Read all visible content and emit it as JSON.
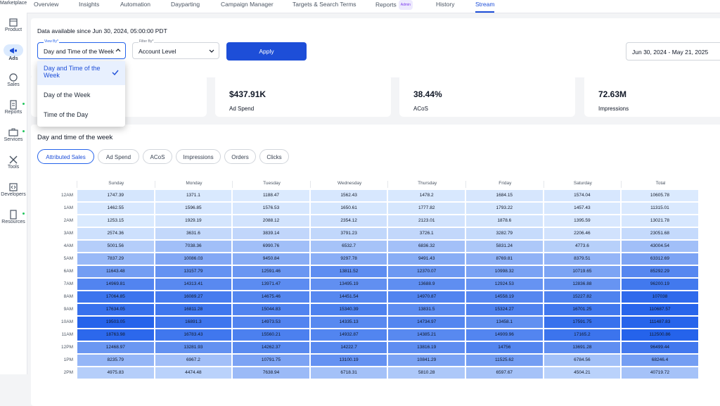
{
  "sidebar": {
    "items": [
      {
        "label": "Marketplace",
        "icon": "marketplace-icon"
      },
      {
        "label": "Product",
        "icon": "product-icon"
      },
      {
        "label": "Ads",
        "icon": "megaphone-icon"
      },
      {
        "label": "Sales",
        "icon": "sales-icon"
      },
      {
        "label": "Reports",
        "icon": "reports-icon"
      },
      {
        "label": "Services",
        "icon": "services-icon"
      },
      {
        "label": "Tools",
        "icon": "tools-icon"
      },
      {
        "label": "Developers",
        "icon": "code-icon"
      },
      {
        "label": "Resources",
        "icon": "book-icon"
      }
    ]
  },
  "nav": {
    "tabs": [
      "Overview",
      "Insights",
      "Automation",
      "Dayparting",
      "Campaign Manager",
      "Targets & Search Terms",
      "Reports",
      "History",
      "Stream"
    ],
    "reports_badge": "Admin",
    "active": "Stream"
  },
  "filters": {
    "data_available": "Data available since Jun 30, 2024, 05:00:00 PDT",
    "view_by_label": "View By*",
    "view_by_value": "Day and Time of the Week",
    "filter_by_label": "Filter By*",
    "filter_by_value": "Account Level",
    "apply_label": "Apply",
    "date_range": "Jun 30, 2024 - May 21, 2025"
  },
  "dropdown": {
    "options": [
      "Day and Time of the Week",
      "Day of the Week",
      "Time of the Day"
    ],
    "selected": "Day and Time of the Week"
  },
  "metrics": [
    {
      "value": "$437.91K",
      "label": "Ad Spend"
    },
    {
      "value": "38.44%",
      "label": "ACoS"
    },
    {
      "value": "72.63M",
      "label": "Impressions"
    }
  ],
  "heatmap": {
    "title": "Day and time of the week",
    "chips": [
      "Attributed Sales",
      "Ad Spend",
      "ACoS",
      "Impressions",
      "Orders",
      "Clicks"
    ],
    "active_chip": "Attributed Sales",
    "columns": [
      "Sunday",
      "Monday",
      "Tuesday",
      "Wednesday",
      "Thursday",
      "Friday",
      "Saturday",
      "Total"
    ],
    "rows": [
      {
        "label": "12AM",
        "values": [
          "1747.39",
          "1371.1",
          "1188.47",
          "1562.43",
          "1478.2",
          "1684.15",
          "1574.04",
          "10605.78"
        ]
      },
      {
        "label": "1AM",
        "values": [
          "1462.55",
          "1596.85",
          "1576.53",
          "1650.61",
          "1777.82",
          "1793.22",
          "1457.43",
          "11315.01"
        ]
      },
      {
        "label": "2AM",
        "values": [
          "1253.15",
          "1929.19",
          "2088.12",
          "2354.12",
          "2123.01",
          "1878.6",
          "1395.59",
          "13021.78"
        ]
      },
      {
        "label": "3AM",
        "values": [
          "2574.36",
          "3631.6",
          "3839.14",
          "3791.23",
          "3726.1",
          "3282.79",
          "2206.46",
          "23051.68"
        ]
      },
      {
        "label": "4AM",
        "values": [
          "5001.56",
          "7038.36",
          "6990.76",
          "6532.7",
          "6836.32",
          "5831.24",
          "4773.6",
          "43004.54"
        ]
      },
      {
        "label": "5AM",
        "values": [
          "7837.29",
          "10086.03",
          "9450.84",
          "9297.78",
          "9491.43",
          "8769.81",
          "8379.51",
          "63312.69"
        ]
      },
      {
        "label": "6AM",
        "values": [
          "11643.48",
          "13157.79",
          "12591.46",
          "13811.52",
          "12370.07",
          "10998.32",
          "10719.65",
          "85292.29"
        ]
      },
      {
        "label": "7AM",
        "values": [
          "14969.81",
          "14313.41",
          "13971.47",
          "13495.19",
          "13688.9",
          "12924.53",
          "12836.88",
          "96200.19"
        ]
      },
      {
        "label": "8AM",
        "values": [
          "17064.85",
          "16089.27",
          "14675.46",
          "14451.54",
          "14970.87",
          "14558.19",
          "15227.82",
          "107038"
        ]
      },
      {
        "label": "9AM",
        "values": [
          "17634.05",
          "16811.28",
          "15044.83",
          "15340.39",
          "13831.5",
          "15324.27",
          "16701.25",
          "110687.57"
        ]
      },
      {
        "label": "10AM",
        "values": [
          "19503.05",
          "16891.3",
          "14973.53",
          "14335.13",
          "14734.97",
          "13458.1",
          "17591.75",
          "111487.83"
        ]
      },
      {
        "label": "11AM",
        "values": [
          "18763.98",
          "16783.43",
          "15560.21",
          "14932.87",
          "14385.21",
          "14909.96",
          "17165.2",
          "112500.86"
        ]
      },
      {
        "label": "12PM",
        "values": [
          "12468.97",
          "13281.93",
          "14262.37",
          "14222.7",
          "13816.19",
          "14756",
          "13691.28",
          "96499.44"
        ]
      },
      {
        "label": "1PM",
        "values": [
          "8235.79",
          "6967.2",
          "10791.75",
          "13100.19",
          "10841.29",
          "11525.62",
          "6784.56",
          "68246.4"
        ]
      },
      {
        "label": "2PM",
        "values": [
          "4975.83",
          "4474.48",
          "7638.94",
          "6718.31",
          "5810.28",
          "6597.67",
          "4504.21",
          "40719.72"
        ]
      }
    ]
  },
  "colors": {
    "accent": "#1d4ed8",
    "cell_low": "#dbeafe",
    "cell_high": "#2563eb"
  }
}
